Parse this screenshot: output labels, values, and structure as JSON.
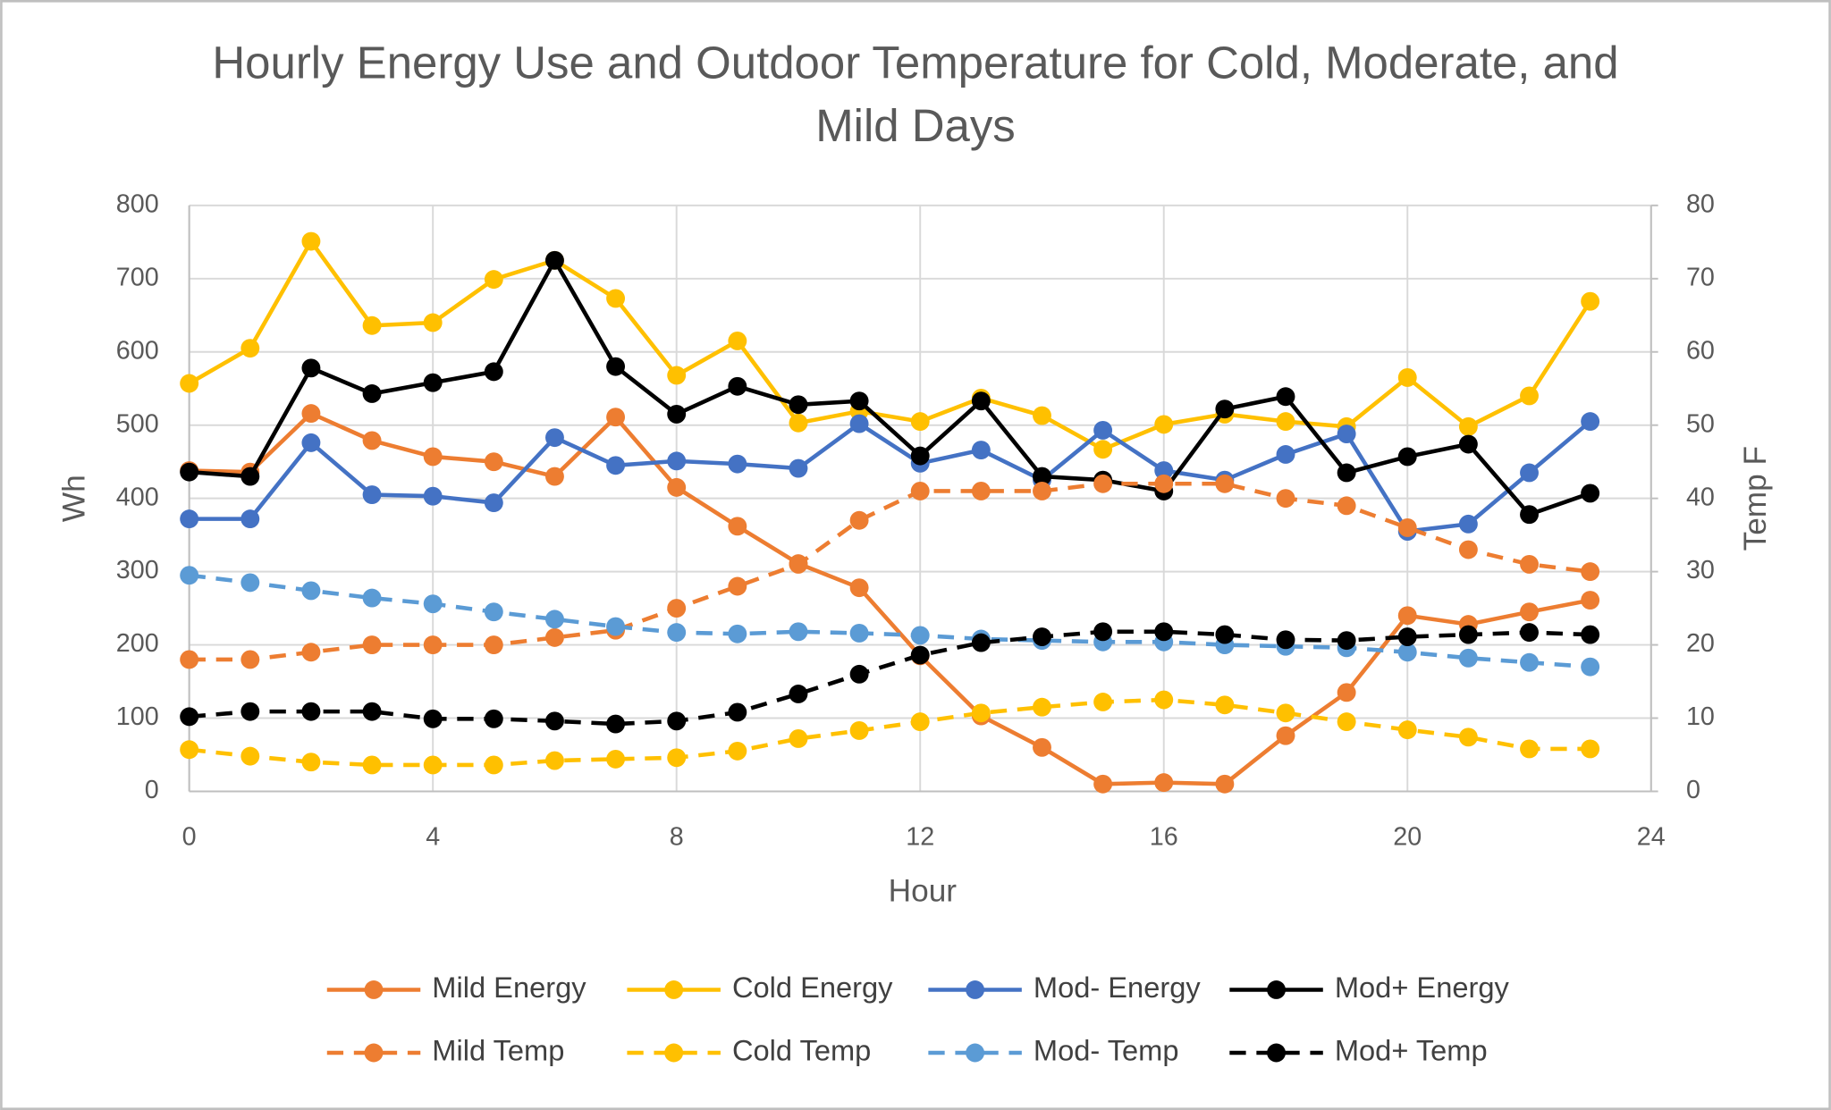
{
  "chart_data": {
    "type": "line",
    "title": "Hourly Energy Use and Outdoor Temperature for Cold, Moderate, and Mild Days",
    "x_label": "Hour",
    "y_label": "Wh",
    "y2_label": "Temp F",
    "x": [
      0,
      1,
      2,
      3,
      4,
      5,
      6,
      7,
      8,
      9,
      10,
      11,
      12,
      13,
      14,
      15,
      16,
      17,
      18,
      19,
      20,
      21,
      22,
      23
    ],
    "xlim": [
      0,
      24
    ],
    "xticks": [
      0,
      4,
      8,
      12,
      16,
      20,
      24
    ],
    "ylim": [
      0,
      800
    ],
    "yticks": [
      0,
      100,
      200,
      300,
      400,
      500,
      600,
      700,
      800
    ],
    "y2lim": [
      0,
      80
    ],
    "y2ticks": [
      0,
      10,
      20,
      30,
      40,
      50,
      60,
      70,
      80
    ],
    "grid": true,
    "series": [
      {
        "name": "Mild Energy",
        "color": "#ED7D31",
        "line_style": "solid",
        "values": [
          438,
          436,
          516,
          479,
          457,
          450,
          430,
          511,
          415,
          362,
          311,
          278,
          185,
          103,
          60,
          10,
          12,
          10,
          76,
          135,
          240,
          228,
          245,
          261
        ]
      },
      {
        "name": "Cold Energy",
        "color": "#FFC000",
        "line_style": "solid",
        "values": [
          557,
          605,
          751,
          636,
          640,
          699,
          725,
          673,
          568,
          615,
          503,
          519,
          505,
          537,
          513,
          467,
          501,
          515,
          505,
          498,
          565,
          498,
          540,
          669
        ]
      },
      {
        "name": "Mod- Energy",
        "color": "#4472C4",
        "line_style": "solid",
        "values": [
          372,
          372,
          476,
          405,
          403,
          394,
          483,
          445,
          451,
          447,
          441,
          502,
          448,
          466,
          425,
          493,
          438,
          425,
          460,
          488,
          355,
          365,
          435,
          505
        ]
      },
      {
        "name": "Mod+ Energy",
        "color": "#000000",
        "line_style": "solid",
        "values": [
          436,
          430,
          578,
          543,
          558,
          573,
          725,
          580,
          515,
          553,
          528,
          533,
          458,
          533,
          430,
          425,
          410,
          522,
          539,
          435,
          457,
          474,
          378,
          407
        ]
      },
      {
        "name": "Mild Temp",
        "color": "#ED7D31",
        "line_style": "dashed",
        "axis": "y2",
        "values": [
          18,
          18,
          19,
          20,
          20,
          20,
          21,
          22,
          25,
          28,
          31,
          37,
          41,
          41,
          41,
          42,
          42,
          42,
          40,
          39,
          36,
          33,
          31,
          30
        ]
      },
      {
        "name": "Cold Temp",
        "color": "#FFC000",
        "line_style": "dashed",
        "axis": "y2",
        "values": [
          5.7,
          4.8,
          4,
          3.6,
          3.6,
          3.6,
          4.2,
          4.4,
          4.6,
          5.5,
          7.2,
          8.3,
          9.5,
          10.7,
          11.5,
          12.2,
          12.5,
          11.8,
          10.7,
          9.5,
          8.4,
          7.4,
          5.8,
          5.8
        ]
      },
      {
        "name": "Mod- Temp",
        "color": "#5B9BD5",
        "line_style": "dashed",
        "axis": "y2",
        "values": [
          29.5,
          28.5,
          27.4,
          26.4,
          25.6,
          24.5,
          23.5,
          22.5,
          21.7,
          21.5,
          21.8,
          21.6,
          21.3,
          20.8,
          20.6,
          20.4,
          20.4,
          20,
          19.8,
          19.6,
          19,
          18.2,
          17.6,
          17
        ]
      },
      {
        "name": "Mod+ Temp",
        "color": "#000000",
        "line_style": "dashed",
        "axis": "y2",
        "values": [
          10.2,
          10.9,
          10.9,
          10.9,
          9.9,
          9.9,
          9.6,
          9.2,
          9.6,
          10.8,
          13.3,
          16,
          18.6,
          20.3,
          21.1,
          21.8,
          21.8,
          21.4,
          20.7,
          20.6,
          21.1,
          21.4,
          21.7,
          21.4
        ]
      }
    ]
  }
}
